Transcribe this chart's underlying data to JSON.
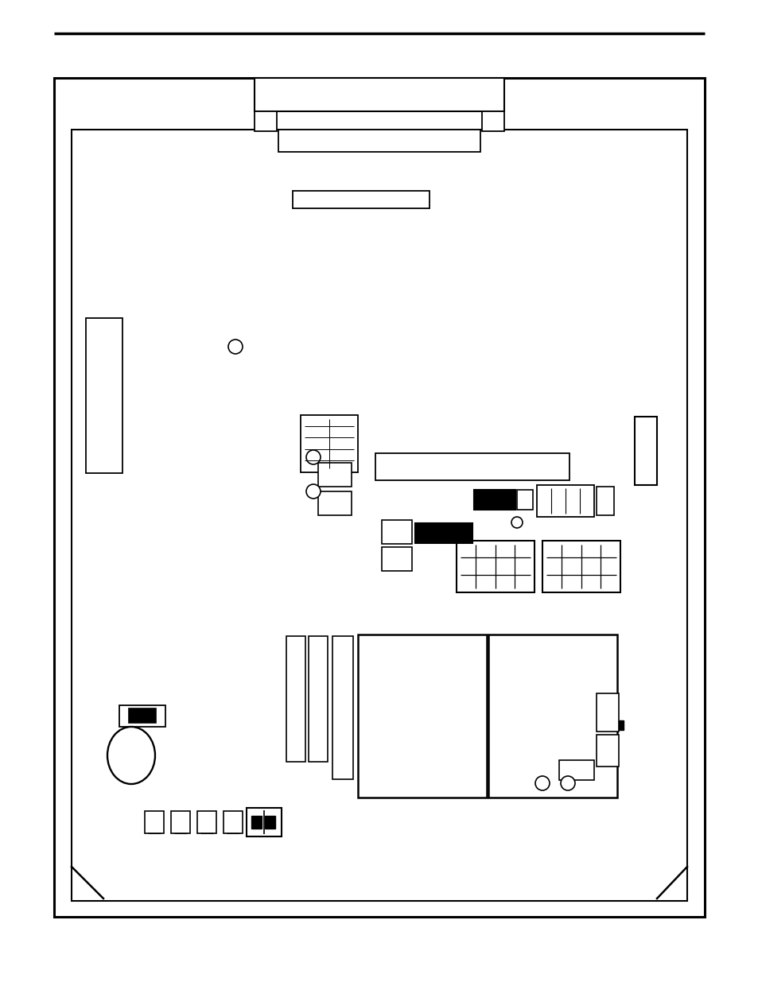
{
  "bg_color": "#ffffff",
  "line_color": "#000000",
  "fig_width": 9.54,
  "fig_height": 12.35,
  "dpi": 100
}
